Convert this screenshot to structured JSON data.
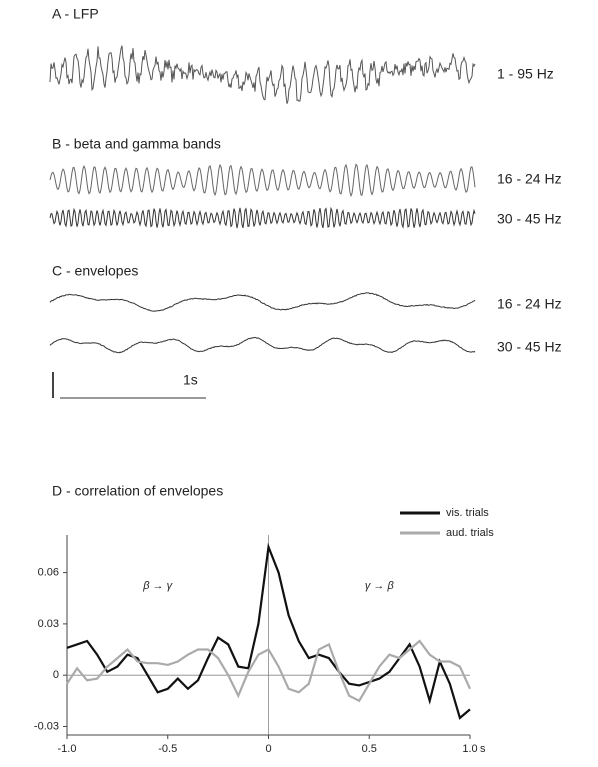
{
  "panels": [
    {
      "title": "A - LFP",
      "traces": [
        "1 - 95 Hz"
      ]
    },
    {
      "title": "B - beta and gamma bands",
      "traces": [
        "16 - 24 Hz",
        "30 - 45 Hz"
      ]
    },
    {
      "title": "C - envelopes",
      "traces": [
        "16 - 24 Hz",
        "30 - 45 Hz"
      ]
    }
  ],
  "scale_bar": "1s",
  "chart_data": {
    "type": "line",
    "title": "D - correlation of envelopes",
    "x": [
      -1.0,
      -0.95,
      -0.9,
      -0.85,
      -0.8,
      -0.75,
      -0.7,
      -0.65,
      -0.6,
      -0.55,
      -0.5,
      -0.45,
      -0.4,
      -0.35,
      -0.3,
      -0.25,
      -0.2,
      -0.15,
      -0.1,
      -0.05,
      0,
      0.05,
      0.1,
      0.15,
      0.2,
      0.25,
      0.3,
      0.35,
      0.4,
      0.45,
      0.5,
      0.55,
      0.6,
      0.65,
      0.7,
      0.75,
      0.8,
      0.85,
      0.9,
      0.95,
      1.0
    ],
    "series": [
      {
        "name": "vis. trials",
        "color": "#111111",
        "values": [
          0.016,
          0.018,
          0.02,
          0.012,
          0.002,
          0.005,
          0.012,
          0.01,
          0.0,
          -0.01,
          -0.008,
          -0.002,
          -0.008,
          -0.003,
          0.01,
          0.022,
          0.018,
          0.005,
          0.004,
          0.03,
          0.075,
          0.06,
          0.035,
          0.02,
          0.01,
          0.012,
          0.01,
          0.002,
          -0.005,
          -0.006,
          -0.004,
          -0.002,
          0.002,
          0.01,
          0.018,
          0.005,
          -0.015,
          0.008,
          -0.005,
          -0.025,
          -0.02
        ]
      },
      {
        "name": "aud. trials",
        "color": "#aaaaaa",
        "values": [
          -0.005,
          0.004,
          -0.003,
          -0.002,
          0.005,
          0.01,
          0.015,
          0.008,
          0.007,
          0.007,
          0.006,
          0.008,
          0.012,
          0.015,
          0.015,
          0.01,
          0.0,
          -0.012,
          0.002,
          0.012,
          0.015,
          0.005,
          -0.008,
          -0.01,
          -0.005,
          0.015,
          0.018,
          0.002,
          -0.012,
          -0.015,
          -0.005,
          0.005,
          0.012,
          0.01,
          0.015,
          0.02,
          0.012,
          0.008,
          0.008,
          0.005,
          -0.008
        ]
      }
    ],
    "xlim": [
      -1.0,
      1.0
    ],
    "xticks": [
      {
        "value": -1.0,
        "label": "-1.0"
      },
      -0.5,
      0,
      0.5,
      {
        "value": 1.0,
        "label": "1.0"
      }
    ],
    "x_unit": "s",
    "ylim": [
      -0.035,
      0.082
    ],
    "yticks": [
      -0.03,
      0,
      0.03,
      0.06
    ],
    "annotations": [
      "β → γ",
      "γ → β"
    ]
  }
}
